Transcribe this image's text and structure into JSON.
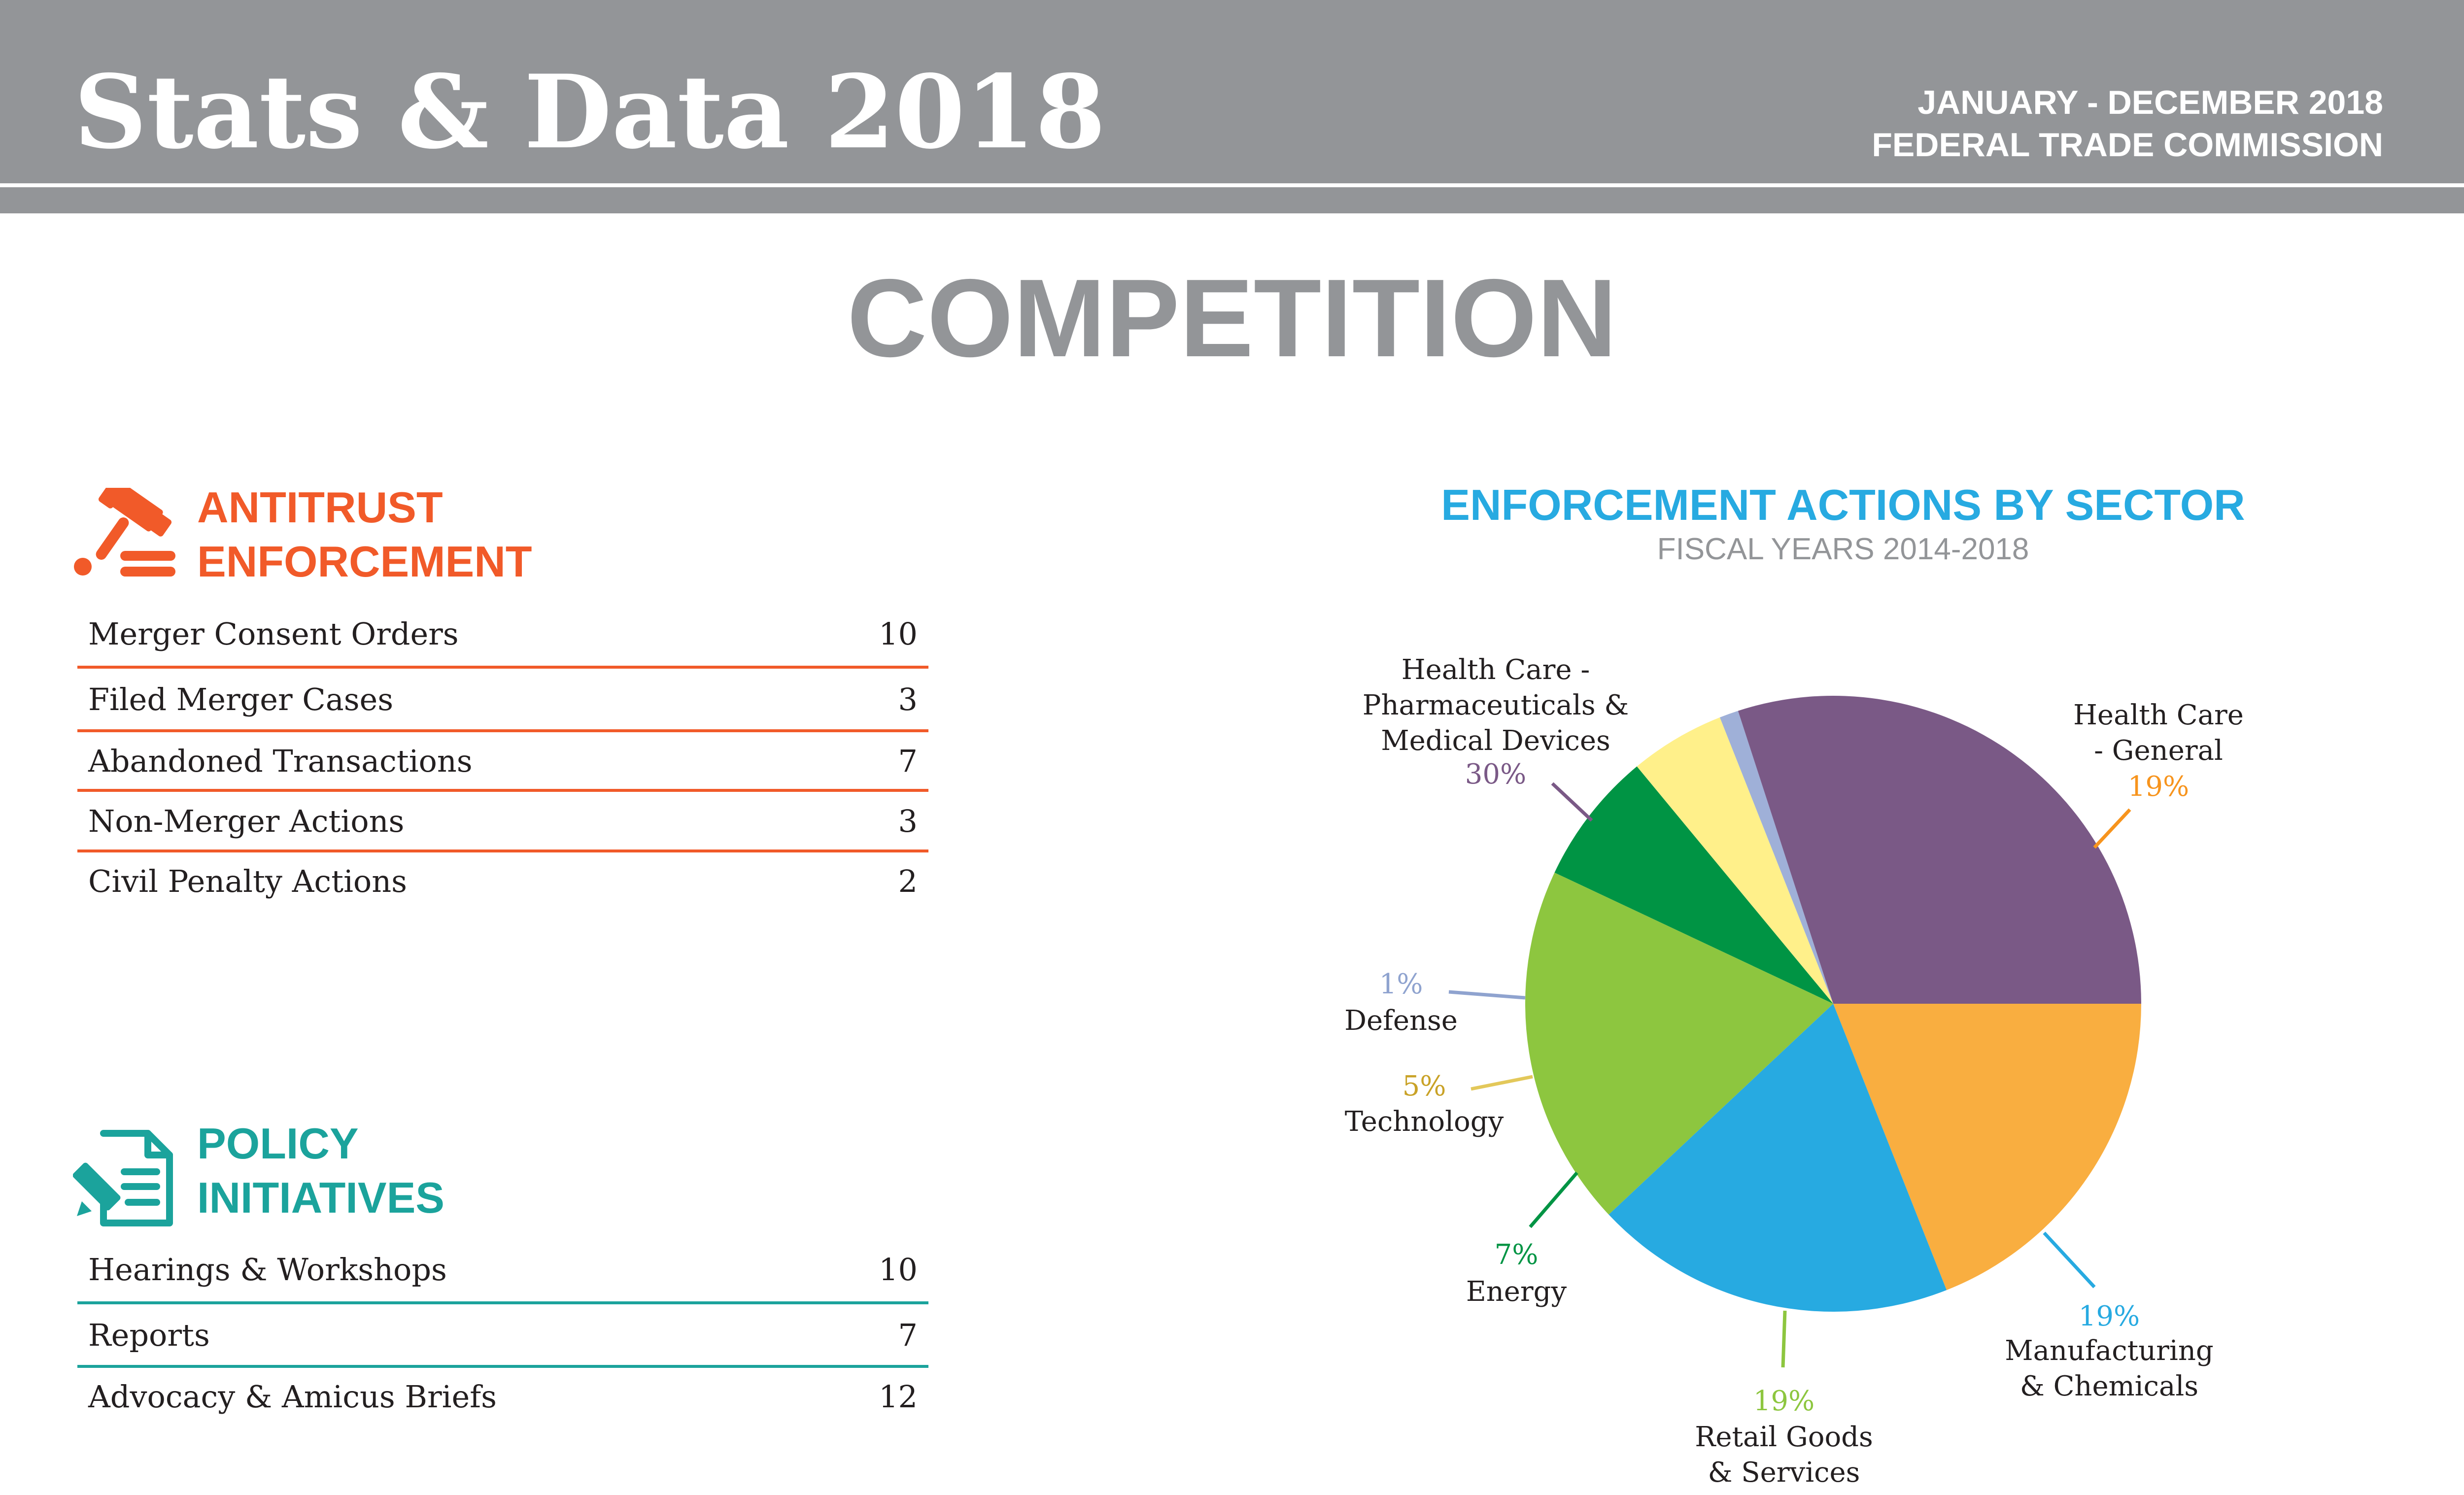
{
  "header": {
    "brand": "Stats & Data 2018",
    "date_range": "JANUARY - DECEMBER 2018",
    "agency": "FEDERAL TRADE COMMISSION"
  },
  "page_title": "COMPETITION",
  "antitrust": {
    "heading_line1": "ANTITRUST",
    "heading_line2": "ENFORCEMENT",
    "icon": "gavel-icon",
    "color": "#F15A29",
    "rows": [
      {
        "label": "Merger Consent Orders",
        "value": "10"
      },
      {
        "label": "Filed Merger Cases",
        "value": "3"
      },
      {
        "label": "Abandoned Transactions",
        "value": "7"
      },
      {
        "label": "Non-Merger Actions",
        "value": "3"
      },
      {
        "label": "Civil Penalty Actions",
        "value": "2"
      }
    ]
  },
  "policy": {
    "heading_line1": "POLICY",
    "heading_line2": "INITIATIVES",
    "icon": "document-pen-icon",
    "color": "#1BA39C",
    "rows": [
      {
        "label": "Hearings & Workshops",
        "value": "10"
      },
      {
        "label": "Reports",
        "value": "7"
      },
      {
        "label": "Advocacy & Amicus Briefs",
        "value": "12"
      }
    ]
  },
  "chart_data": {
    "type": "pie",
    "title": "ENFORCEMENT ACTIONS BY SECTOR",
    "subtitle": "FISCAL YEARS 2014-2018",
    "legend": "none",
    "slices": [
      {
        "label_lines": [
          "Health Care",
          "- General"
        ],
        "value": 19,
        "pct": "19%",
        "color": "#F9AE40",
        "label_color": "#F7941D"
      },
      {
        "label_lines": [
          "Manufacturing",
          "& Chemicals"
        ],
        "value": 19,
        "pct": "19%",
        "color": "#27AAE1",
        "label_color": "#27AAE1"
      },
      {
        "label_lines": [
          "Retail Goods",
          "& Services"
        ],
        "value": 19,
        "pct": "19%",
        "color": "#8DC63F",
        "label_color": "#8DC63F"
      },
      {
        "label_lines": [
          "Energy"
        ],
        "value": 7,
        "pct": "7%",
        "color": "#009444",
        "label_color": "#009444"
      },
      {
        "label_lines": [
          "Technology"
        ],
        "value": 5,
        "pct": "5%",
        "color": "#FFF08A",
        "label_color": "#C9A227"
      },
      {
        "label_lines": [
          "Defense"
        ],
        "value": 1,
        "pct": "1%",
        "color": "#9FB0D8",
        "label_color": "#8FA3CF"
      },
      {
        "label_lines": [
          "Health Care -",
          "Pharmaceuticals &",
          "Medical Devices"
        ],
        "value": 30,
        "pct": "30%",
        "color": "#7A5986",
        "label_color": "#7A5986"
      }
    ]
  }
}
